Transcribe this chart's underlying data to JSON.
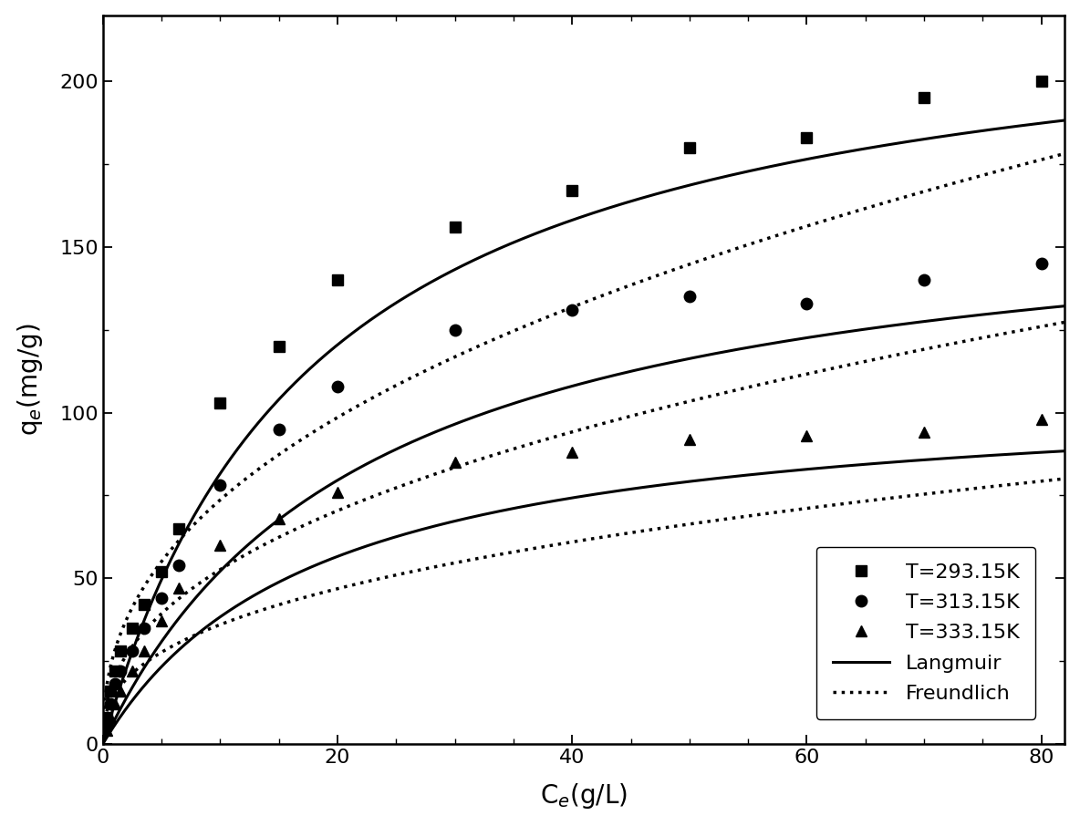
{
  "xlabel": "C$_e$(g/L)",
  "ylabel": "q$_e$(mg/g)",
  "xlim": [
    0,
    82
  ],
  "ylim": [
    0,
    220
  ],
  "xticks": [
    0,
    20,
    40,
    60,
    80
  ],
  "yticks": [
    0,
    50,
    100,
    150,
    200
  ],
  "background_color": "#ffffff",
  "data_293": {
    "x": [
      0.3,
      0.6,
      1.0,
      1.5,
      2.5,
      3.5,
      5.0,
      6.5,
      10.0,
      15.0,
      20.0,
      30.0,
      40.0,
      50.0,
      60.0,
      70.0,
      80.0
    ],
    "y": [
      8.0,
      16.0,
      22.0,
      28.0,
      35.0,
      42.0,
      52.0,
      65.0,
      103.0,
      120.0,
      140.0,
      156.0,
      167.0,
      180.0,
      183.0,
      195.0,
      200.0
    ]
  },
  "data_313": {
    "x": [
      0.3,
      0.6,
      1.0,
      1.5,
      2.5,
      3.5,
      5.0,
      6.5,
      10.0,
      15.0,
      20.0,
      30.0,
      40.0,
      50.0,
      60.0,
      70.0,
      80.0
    ],
    "y": [
      6.0,
      12.0,
      18.0,
      22.0,
      28.0,
      35.0,
      44.0,
      54.0,
      78.0,
      95.0,
      108.0,
      125.0,
      131.0,
      135.0,
      133.0,
      140.0,
      145.0
    ]
  },
  "data_333": {
    "x": [
      0.3,
      0.6,
      1.0,
      1.5,
      2.5,
      3.5,
      5.0,
      6.5,
      10.0,
      15.0,
      20.0,
      30.0,
      40.0,
      50.0,
      60.0,
      70.0,
      80.0
    ],
    "y": [
      4.0,
      8.0,
      12.0,
      16.0,
      22.0,
      28.0,
      37.0,
      47.0,
      60.0,
      68.0,
      76.0,
      85.0,
      88.0,
      92.0,
      93.0,
      94.0,
      98.0
    ]
  },
  "langmuir_293": {
    "qmax": 230.0,
    "KL": 0.055
  },
  "langmuir_313": {
    "qmax": 168.0,
    "KL": 0.045
  },
  "langmuir_333": {
    "qmax": 108.0,
    "KL": 0.055
  },
  "freundlich_293": {
    "KF": 28.0,
    "n": 0.42
  },
  "freundlich_313": {
    "KF": 20.0,
    "n": 0.42
  },
  "freundlich_333": {
    "KF": 15.0,
    "n": 0.38
  },
  "legend_labels_markers": [
    "T=293.15K",
    "T=313.15K",
    "T=333.15K"
  ],
  "legend_labels_lines": [
    "Langmuir",
    "Freundlich"
  ],
  "marker_color": "#000000",
  "line_color": "#000000",
  "fontsize_label": 20,
  "fontsize_tick": 16,
  "fontsize_legend": 16
}
